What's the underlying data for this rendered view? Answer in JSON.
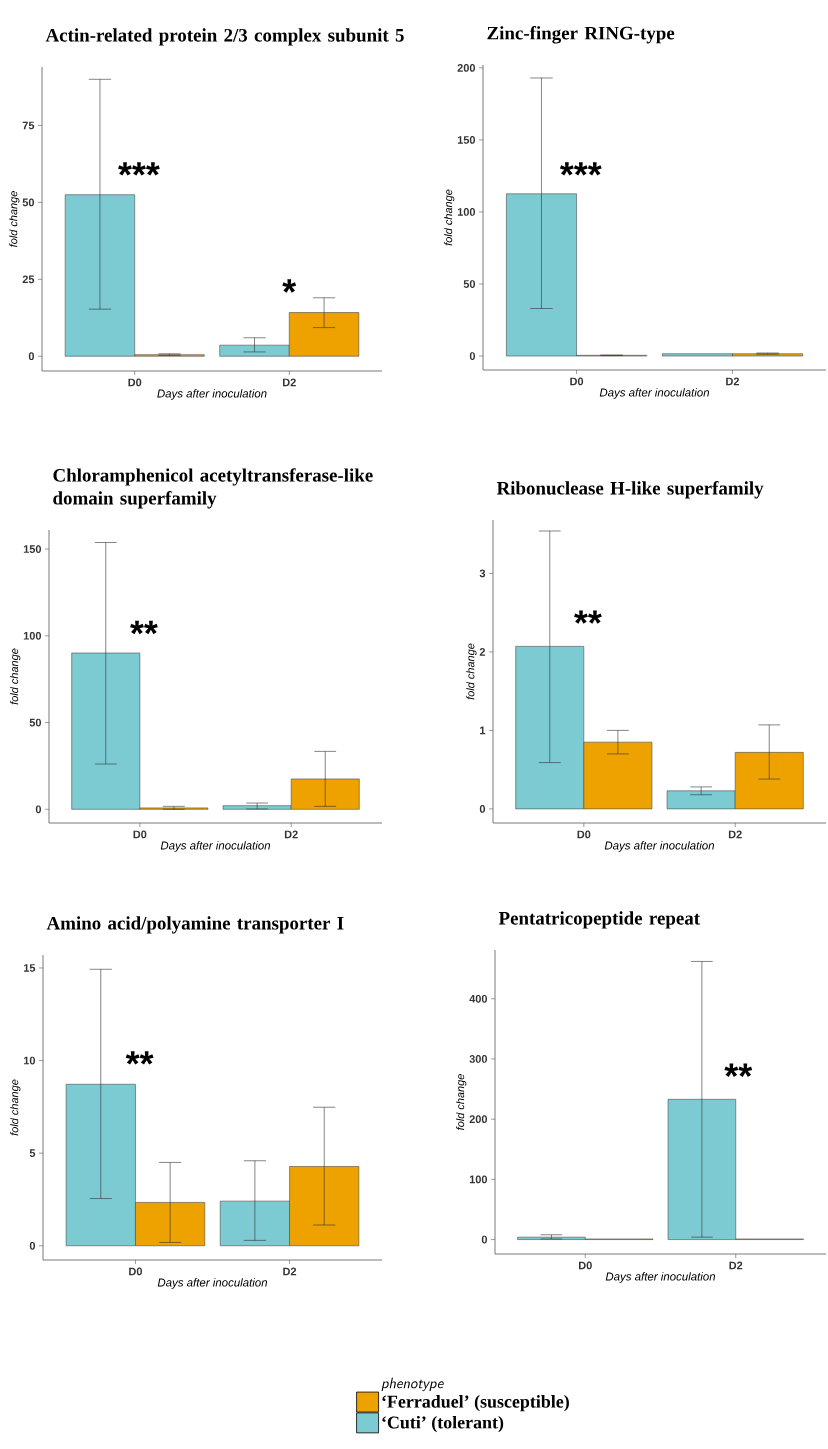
{
  "chart_data": [
    {
      "type": "bar",
      "title": "Actin-related protein 2/3 complex subunit 5",
      "xlabel": "Days after inoculation",
      "ylabel": "fold change",
      "categories": [
        "D0",
        "D2"
      ],
      "ylim": [
        -4.8,
        94
      ],
      "yticks": [
        0,
        25,
        50,
        75
      ],
      "series": [
        {
          "color": "#7ccbd3",
          "values": [
            52.5,
            3.6
          ],
          "errors": [
            [
              15.3,
              90
            ],
            [
              1.4,
              6
            ]
          ]
        },
        {
          "color": "#eda200",
          "values": [
            0.5,
            14.2
          ],
          "errors": [
            [
              0.3,
              0.8
            ],
            [
              9.3,
              19
            ]
          ]
        }
      ],
      "annotations": [
        "***",
        "*"
      ]
    },
    {
      "type": "bar",
      "title": "Zinc-finger RING-type",
      "xlabel": "Days after inoculation",
      "ylabel": "fold change",
      "categories": [
        "D0",
        "D2"
      ],
      "ylim": [
        -9.7,
        202
      ],
      "yticks": [
        0,
        50,
        100,
        150,
        200
      ],
      "series": [
        {
          "color": "#7ccbd3",
          "values": [
            112.6,
            1.6
          ],
          "errors": [
            [
              33,
              193
            ],
            null
          ]
        },
        {
          "color": "#eda200",
          "values": [
            0.5,
            1.6
          ],
          "errors": [
            [
              0.3,
              0.7
            ],
            [
              1.3,
              2.1
            ]
          ]
        }
      ],
      "annotations": [
        "***"
      ]
    },
    {
      "type": "bar",
      "title": "Chloramphenicol acetyltransferase-like domain superfamily",
      "xlabel": "Days after inoculation",
      "ylabel": "fold change",
      "categories": [
        "D0",
        "D2"
      ],
      "ylim": [
        -7.9,
        161
      ],
      "yticks": [
        0,
        50,
        100,
        150
      ],
      "series": [
        {
          "color": "#7ccbd3",
          "values": [
            90.1,
            2.1
          ],
          "errors": [
            [
              26.1,
              153.8
            ],
            [
              0.2,
              3.6
            ]
          ]
        },
        {
          "color": "#eda200",
          "values": [
            0.8,
            17.5
          ],
          "errors": [
            [
              0,
              1.7
            ],
            [
              1.7,
              33.4
            ]
          ]
        }
      ],
      "annotations": [
        "**"
      ]
    },
    {
      "type": "bar",
      "title": "Ribonuclease H-like superfamily",
      "xlabel": "Days after inoculation",
      "ylabel": "fold change",
      "categories": [
        "D0",
        "D2"
      ],
      "ylim": [
        -0.18,
        3.68
      ],
      "yticks": [
        0,
        1,
        2,
        3
      ],
      "series": [
        {
          "color": "#7ccbd3",
          "values": [
            2.07,
            0.23
          ],
          "errors": [
            [
              0.59,
              3.54
            ],
            [
              0.18,
              0.28
            ]
          ]
        },
        {
          "color": "#eda200",
          "values": [
            0.85,
            0.72
          ],
          "errors": [
            [
              0.7,
              1.0
            ],
            [
              0.38,
              1.07
            ]
          ]
        }
      ],
      "annotations": [
        "**"
      ]
    },
    {
      "type": "bar",
      "title": "Amino acid/polyamine transporter I",
      "xlabel": "Days after inoculation",
      "ylabel": "fold change",
      "categories": [
        "D0",
        "D2"
      ],
      "ylim": [
        -0.77,
        15.7
      ],
      "yticks": [
        0,
        5,
        10,
        15
      ],
      "series": [
        {
          "color": "#7ccbd3",
          "values": [
            8.72,
            2.41
          ],
          "errors": [
            [
              2.55,
              14.93
            ],
            [
              0.29,
              4.59
            ]
          ]
        },
        {
          "color": "#eda200",
          "values": [
            2.34,
            4.28
          ],
          "errors": [
            [
              0.18,
              4.5
            ],
            [
              1.12,
              7.48
            ]
          ]
        }
      ],
      "annotations": [
        "**"
      ]
    },
    {
      "type": "bar",
      "title": "Pentatricopeptide repeat",
      "xlabel": "Days after inoculation",
      "ylabel": "fold change",
      "categories": [
        "D0",
        "D2"
      ],
      "ylim": [
        -24,
        481
      ],
      "yticks": [
        0,
        100,
        200,
        300,
        400
      ],
      "legend": "bottom",
      "legend_title": "phenotype",
      "series": [
        {
          "name": "‘Cuti’ (tolerant)",
          "color": "#7ccbd3",
          "values": [
            4,
            233
          ],
          "errors": [
            [
              1,
              8
            ],
            [
              4,
              462
            ]
          ]
        },
        {
          "name": "‘Ferraduel’ (susceptible)",
          "color": "#eda200",
          "values": [
            1,
            1
          ]
        }
      ],
      "annotations": [
        "**"
      ]
    }
  ]
}
